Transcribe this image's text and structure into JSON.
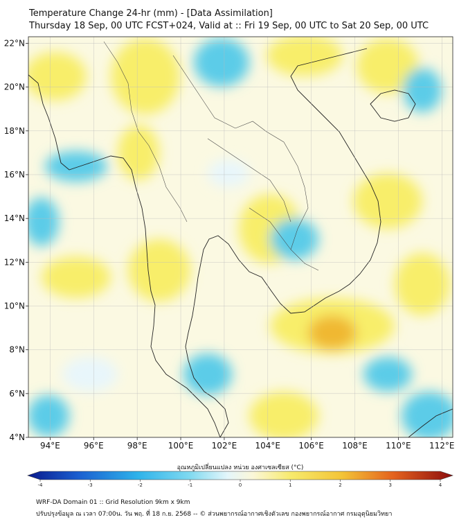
{
  "header": {
    "title": "Temperature Change 24-hr (mm) - [Data Assimilation]",
    "subtitle": "Thursday 18 Sep, 00 UTC FCST+024, Valid at :: Fri 19 Sep, 00 UTC to Sat 20 Sep, 00 UTC"
  },
  "map": {
    "lat_labels": [
      "22°N",
      "20°N",
      "18°N",
      "16°N",
      "14°N",
      "12°N",
      "10°N",
      "8°N",
      "6°N",
      "4°N"
    ],
    "lat_values": [
      22,
      20,
      18,
      16,
      14,
      12,
      10,
      8,
      6,
      4
    ],
    "lon_labels": [
      "94°E",
      "96°E",
      "98°E",
      "100°E",
      "102°E",
      "104°E",
      "106°E",
      "108°E",
      "110°E",
      "112°E"
    ],
    "lon_values": [
      94,
      96,
      98,
      100,
      102,
      104,
      106,
      108,
      110,
      112
    ],
    "lon_range": [
      93,
      112.5
    ],
    "lat_range": [
      4,
      22.3
    ],
    "field_colors": {
      "cool": "#5ccce8",
      "pale": "#e8f6fb",
      "warm": "#f8ee6a",
      "hot": "#f0b830",
      "background": "#fbf9e2"
    }
  },
  "colorbar": {
    "label": "อุณหภูมิเปลี่ยนแปลง หน่วย องศาเซลเซียส (°C)",
    "ticks": [
      "-4",
      "-3",
      "-2",
      "-1",
      "0",
      "1",
      "2",
      "3",
      "4"
    ],
    "tick_values": [
      -4,
      -3,
      -2,
      -1,
      0,
      1,
      2,
      3,
      4
    ],
    "range": [
      -4,
      4
    ]
  },
  "footer": {
    "line1": "WRF-DA Domain 01 :: Grid Resolution 9km x 9km",
    "line2": "ปรับปรุงข้อมูล ณ เวลา 07:00น. วัน พฤ. ที่ 18 ก.ย. 2568 -- © ส่วนพยากรณ์อากาศเชิงตัวเลข กองพยากรณ์อากาศ กรมอุตุนิยมวิทยา"
  }
}
